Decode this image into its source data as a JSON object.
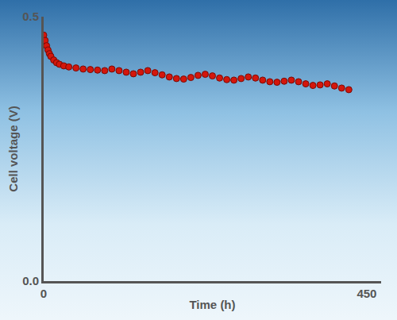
{
  "chart_data": {
    "type": "scatter",
    "x_label": "Time (h)",
    "y_label": "Cell voltage (V)",
    "x": [
      0,
      2,
      4,
      6,
      8,
      10,
      14,
      18,
      22,
      28,
      35,
      45,
      55,
      65,
      75,
      85,
      95,
      105,
      115,
      125,
      135,
      145,
      155,
      165,
      175,
      185,
      195,
      205,
      215,
      225,
      235,
      245,
      255,
      265,
      275,
      285,
      295,
      305,
      315,
      325,
      335,
      345,
      355,
      365,
      375,
      385,
      395,
      405,
      415,
      425
    ],
    "values": [
      0.465,
      0.455,
      0.445,
      0.437,
      0.43,
      0.425,
      0.418,
      0.413,
      0.41,
      0.407,
      0.405,
      0.403,
      0.401,
      0.4,
      0.399,
      0.398,
      0.401,
      0.398,
      0.395,
      0.392,
      0.395,
      0.398,
      0.394,
      0.39,
      0.386,
      0.383,
      0.382,
      0.385,
      0.389,
      0.391,
      0.388,
      0.384,
      0.381,
      0.38,
      0.383,
      0.386,
      0.384,
      0.38,
      0.377,
      0.376,
      0.378,
      0.38,
      0.377,
      0.373,
      0.37,
      0.371,
      0.373,
      0.369,
      0.365,
      0.362
    ],
    "color": "#d4160c",
    "marker": "circle",
    "xlim": [
      0,
      470
    ],
    "xticks": [
      0,
      450
    ],
    "ylim": [
      0,
      0.5
    ],
    "yticks": [
      {
        "value": 0,
        "label": "0.0"
      },
      0.5
    ],
    "grid": false
  }
}
